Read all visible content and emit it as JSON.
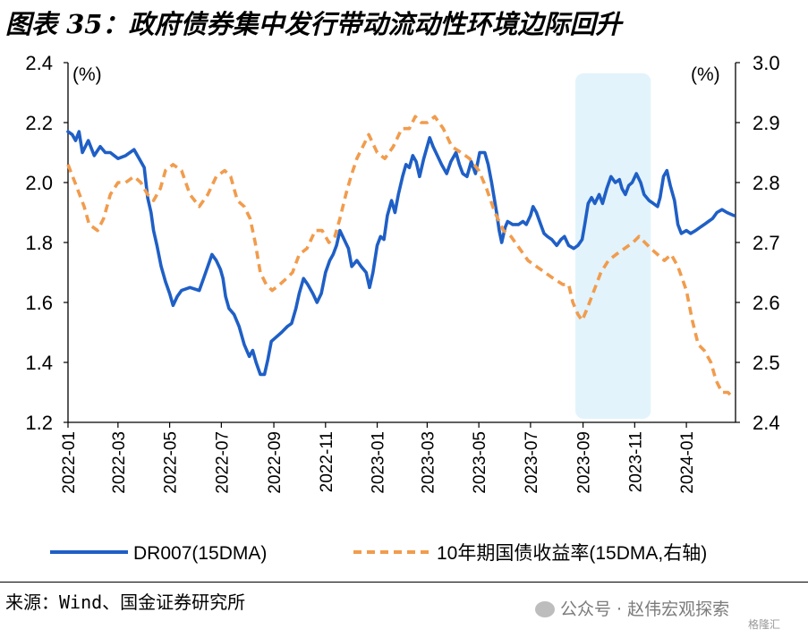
{
  "figure": {
    "title": "图表 35：政府债券集中发行带动流动性环境边际回升",
    "source": "来源：Wind、国金证券研究所",
    "watermark": "公众号 · 赵伟宏观探索",
    "watermark_small": "格隆汇"
  },
  "colors": {
    "series1": "#1f5fc6",
    "series2": "#f19c4d",
    "shade": "#e2f3fb"
  },
  "chart_data": {
    "type": "line",
    "left_unit": "(%)",
    "right_unit": "(%)",
    "y_left": {
      "min": 1.2,
      "max": 2.4,
      "ticks": [
        "1.2",
        "1.4",
        "1.6",
        "1.8",
        "2.0",
        "2.2",
        "2.4"
      ]
    },
    "y_right": {
      "min": 2.4,
      "max": 3.0,
      "ticks": [
        "2.4",
        "2.5",
        "2.6",
        "2.7",
        "2.8",
        "2.9",
        "3.0"
      ]
    },
    "x_ticks": [
      "2022-01",
      "2022-03",
      "2022-05",
      "2022-07",
      "2022-09",
      "2022-11",
      "2023-01",
      "2023-03",
      "2023-05",
      "2023-07",
      "2023-09",
      "2023-11",
      "2024-01"
    ],
    "shaded_period": {
      "start": "2023-08-23",
      "end": "2023-11-20"
    },
    "grid": false,
    "legend_position": "bottom",
    "series": [
      {
        "name": "DR007(15DMA)",
        "axis": "left",
        "style": "solid",
        "points": [
          [
            "2022-01-01",
            2.17
          ],
          [
            "2022-01-06",
            2.16
          ],
          [
            "2022-01-10",
            2.14
          ],
          [
            "2022-01-14",
            2.17
          ],
          [
            "2022-01-18",
            2.1
          ],
          [
            "2022-01-25",
            2.14
          ],
          [
            "2022-02-01",
            2.09
          ],
          [
            "2022-02-08",
            2.12
          ],
          [
            "2022-02-14",
            2.1
          ],
          [
            "2022-02-20",
            2.1
          ],
          [
            "2022-03-01",
            2.08
          ],
          [
            "2022-03-10",
            2.09
          ],
          [
            "2022-03-20",
            2.11
          ],
          [
            "2022-03-26",
            2.08
          ],
          [
            "2022-04-01",
            2.05
          ],
          [
            "2022-04-05",
            1.95
          ],
          [
            "2022-04-09",
            1.9
          ],
          [
            "2022-04-12",
            1.84
          ],
          [
            "2022-04-16",
            1.79
          ],
          [
            "2022-04-21",
            1.72
          ],
          [
            "2022-04-26",
            1.67
          ],
          [
            "2022-05-01",
            1.63
          ],
          [
            "2022-05-05",
            1.59
          ],
          [
            "2022-05-10",
            1.62
          ],
          [
            "2022-05-15",
            1.64
          ],
          [
            "2022-05-25",
            1.65
          ],
          [
            "2022-06-05",
            1.64
          ],
          [
            "2022-06-10",
            1.68
          ],
          [
            "2022-06-15",
            1.72
          ],
          [
            "2022-06-20",
            1.76
          ],
          [
            "2022-06-25",
            1.74
          ],
          [
            "2022-06-30",
            1.71
          ],
          [
            "2022-07-03",
            1.68
          ],
          [
            "2022-07-06",
            1.62
          ],
          [
            "2022-07-10",
            1.58
          ],
          [
            "2022-07-16",
            1.56
          ],
          [
            "2022-07-22",
            1.52
          ],
          [
            "2022-07-28",
            1.46
          ],
          [
            "2022-08-03",
            1.42
          ],
          [
            "2022-08-07",
            1.44
          ],
          [
            "2022-08-11",
            1.4
          ],
          [
            "2022-08-16",
            1.36
          ],
          [
            "2022-08-21",
            1.36
          ],
          [
            "2022-08-25",
            1.41
          ],
          [
            "2022-08-29",
            1.47
          ],
          [
            "2022-09-02",
            1.48
          ],
          [
            "2022-09-10",
            1.5
          ],
          [
            "2022-09-17",
            1.52
          ],
          [
            "2022-09-22",
            1.53
          ],
          [
            "2022-09-27",
            1.58
          ],
          [
            "2022-10-01",
            1.63
          ],
          [
            "2022-10-06",
            1.68
          ],
          [
            "2022-10-11",
            1.66
          ],
          [
            "2022-10-17",
            1.63
          ],
          [
            "2022-10-22",
            1.6
          ],
          [
            "2022-10-27",
            1.63
          ],
          [
            "2022-11-01",
            1.7
          ],
          [
            "2022-11-06",
            1.74
          ],
          [
            "2022-11-10",
            1.76
          ],
          [
            "2022-11-14",
            1.79
          ],
          [
            "2022-11-18",
            1.84
          ],
          [
            "2022-11-23",
            1.81
          ],
          [
            "2022-11-28",
            1.78
          ],
          [
            "2022-12-02",
            1.72
          ],
          [
            "2022-12-08",
            1.74
          ],
          [
            "2022-12-13",
            1.72
          ],
          [
            "2022-12-19",
            1.7
          ],
          [
            "2022-12-23",
            1.65
          ],
          [
            "2022-12-27",
            1.7
          ],
          [
            "2023-01-01",
            1.79
          ],
          [
            "2023-01-05",
            1.82
          ],
          [
            "2023-01-09",
            1.81
          ],
          [
            "2023-01-13",
            1.89
          ],
          [
            "2023-01-18",
            1.94
          ],
          [
            "2023-01-22",
            1.9
          ],
          [
            "2023-01-26",
            1.96
          ],
          [
            "2023-01-31",
            2.02
          ],
          [
            "2023-02-04",
            2.06
          ],
          [
            "2023-02-08",
            2.05
          ],
          [
            "2023-02-12",
            2.09
          ],
          [
            "2023-02-16",
            2.07
          ],
          [
            "2023-02-20",
            2.02
          ],
          [
            "2023-02-25",
            2.08
          ],
          [
            "2023-03-01",
            2.12
          ],
          [
            "2023-03-04",
            2.15
          ],
          [
            "2023-03-08",
            2.12
          ],
          [
            "2023-03-13",
            2.09
          ],
          [
            "2023-03-18",
            2.06
          ],
          [
            "2023-03-24",
            2.03
          ],
          [
            "2023-03-29",
            2.07
          ],
          [
            "2023-04-04",
            2.1
          ],
          [
            "2023-04-08",
            2.06
          ],
          [
            "2023-04-12",
            2.03
          ],
          [
            "2023-04-17",
            2.02
          ],
          [
            "2023-04-22",
            2.07
          ],
          [
            "2023-04-27",
            2.03
          ],
          [
            "2023-05-02",
            2.1
          ],
          [
            "2023-05-08",
            2.1
          ],
          [
            "2023-05-12",
            2.06
          ],
          [
            "2023-05-16",
            2.0
          ],
          [
            "2023-05-19",
            1.95
          ],
          [
            "2023-05-22",
            1.9
          ],
          [
            "2023-05-25",
            1.84
          ],
          [
            "2023-05-28",
            1.8
          ],
          [
            "2023-06-01",
            1.85
          ],
          [
            "2023-06-04",
            1.87
          ],
          [
            "2023-06-10",
            1.86
          ],
          [
            "2023-06-17",
            1.86
          ],
          [
            "2023-06-22",
            1.87
          ],
          [
            "2023-06-26",
            1.86
          ],
          [
            "2023-07-01",
            1.89
          ],
          [
            "2023-07-04",
            1.92
          ],
          [
            "2023-07-08",
            1.9
          ],
          [
            "2023-07-13",
            1.86
          ],
          [
            "2023-07-17",
            1.83
          ],
          [
            "2023-07-21",
            1.82
          ],
          [
            "2023-07-26",
            1.81
          ],
          [
            "2023-08-01",
            1.79
          ],
          [
            "2023-08-06",
            1.81
          ],
          [
            "2023-08-10",
            1.82
          ],
          [
            "2023-08-15",
            1.79
          ],
          [
            "2023-08-21",
            1.78
          ],
          [
            "2023-08-26",
            1.79
          ],
          [
            "2023-08-31",
            1.81
          ],
          [
            "2023-09-03",
            1.86
          ],
          [
            "2023-09-07",
            1.93
          ],
          [
            "2023-09-11",
            1.95
          ],
          [
            "2023-09-15",
            1.93
          ],
          [
            "2023-09-20",
            1.96
          ],
          [
            "2023-09-24",
            1.93
          ],
          [
            "2023-09-29",
            1.98
          ],
          [
            "2023-10-04",
            2.02
          ],
          [
            "2023-10-09",
            2.0
          ],
          [
            "2023-10-14",
            2.01
          ],
          [
            "2023-10-17",
            1.98
          ],
          [
            "2023-10-21",
            1.96
          ],
          [
            "2023-10-25",
            1.99
          ],
          [
            "2023-10-29",
            2.0
          ],
          [
            "2023-11-03",
            2.03
          ],
          [
            "2023-11-08",
            2.0
          ],
          [
            "2023-11-12",
            1.96
          ],
          [
            "2023-11-18",
            1.94
          ],
          [
            "2023-11-23",
            1.93
          ],
          [
            "2023-11-28",
            1.92
          ],
          [
            "2023-12-01",
            1.95
          ],
          [
            "2023-12-05",
            2.02
          ],
          [
            "2023-12-09",
            2.04
          ],
          [
            "2023-12-13",
            1.99
          ],
          [
            "2023-12-18",
            1.94
          ],
          [
            "2023-12-22",
            1.86
          ],
          [
            "2023-12-26",
            1.83
          ],
          [
            "2024-01-01",
            1.84
          ],
          [
            "2024-01-06",
            1.83
          ],
          [
            "2024-01-12",
            1.84
          ],
          [
            "2024-01-17",
            1.85
          ],
          [
            "2024-01-22",
            1.86
          ],
          [
            "2024-01-27",
            1.87
          ],
          [
            "2024-02-01",
            1.88
          ],
          [
            "2024-02-06",
            1.9
          ],
          [
            "2024-02-12",
            1.91
          ],
          [
            "2024-02-18",
            1.9
          ],
          [
            "2024-02-26",
            1.89
          ]
        ]
      },
      {
        "name": "10年期国债收益率(15DMA,右轴)",
        "axis": "right",
        "style": "dashed",
        "points": [
          [
            "2022-01-01",
            2.83
          ],
          [
            "2022-01-12",
            2.79
          ],
          [
            "2022-01-20",
            2.76
          ],
          [
            "2022-01-26",
            2.73
          ],
          [
            "2022-02-05",
            2.72
          ],
          [
            "2022-02-12",
            2.74
          ],
          [
            "2022-02-20",
            2.78
          ],
          [
            "2022-03-01",
            2.8
          ],
          [
            "2022-03-10",
            2.8
          ],
          [
            "2022-03-20",
            2.81
          ],
          [
            "2022-03-28",
            2.8
          ],
          [
            "2022-04-05",
            2.78
          ],
          [
            "2022-04-12",
            2.77
          ],
          [
            "2022-04-20",
            2.79
          ],
          [
            "2022-04-26",
            2.82
          ],
          [
            "2022-05-05",
            2.83
          ],
          [
            "2022-05-15",
            2.82
          ],
          [
            "2022-05-25",
            2.78
          ],
          [
            "2022-06-05",
            2.76
          ],
          [
            "2022-06-15",
            2.78
          ],
          [
            "2022-06-25",
            2.81
          ],
          [
            "2022-07-05",
            2.82
          ],
          [
            "2022-07-12",
            2.81
          ],
          [
            "2022-07-20",
            2.77
          ],
          [
            "2022-07-28",
            2.76
          ],
          [
            "2022-08-04",
            2.74
          ],
          [
            "2022-08-10",
            2.7
          ],
          [
            "2022-08-16",
            2.65
          ],
          [
            "2022-08-23",
            2.63
          ],
          [
            "2022-08-30",
            2.62
          ],
          [
            "2022-09-08",
            2.63
          ],
          [
            "2022-09-16",
            2.64
          ],
          [
            "2022-09-23",
            2.65
          ],
          [
            "2022-10-01",
            2.68
          ],
          [
            "2022-10-10",
            2.69
          ],
          [
            "2022-10-20",
            2.72
          ],
          [
            "2022-10-28",
            2.72
          ],
          [
            "2022-11-05",
            2.7
          ],
          [
            "2022-11-12",
            2.71
          ],
          [
            "2022-11-18",
            2.74
          ],
          [
            "2022-11-25",
            2.78
          ],
          [
            "2022-12-01",
            2.81
          ],
          [
            "2022-12-08",
            2.84
          ],
          [
            "2022-12-15",
            2.86
          ],
          [
            "2022-12-22",
            2.88
          ],
          [
            "2023-01-01",
            2.85
          ],
          [
            "2023-01-10",
            2.84
          ],
          [
            "2023-01-20",
            2.86
          ],
          [
            "2023-01-30",
            2.89
          ],
          [
            "2023-02-08",
            2.89
          ],
          [
            "2023-02-15",
            2.91
          ],
          [
            "2023-02-22",
            2.9
          ],
          [
            "2023-03-01",
            2.9
          ],
          [
            "2023-03-10",
            2.91
          ],
          [
            "2023-03-20",
            2.89
          ],
          [
            "2023-03-30",
            2.86
          ],
          [
            "2023-04-10",
            2.85
          ],
          [
            "2023-04-20",
            2.84
          ],
          [
            "2023-05-01",
            2.82
          ],
          [
            "2023-05-10",
            2.79
          ],
          [
            "2023-05-20",
            2.75
          ],
          [
            "2023-05-30",
            2.72
          ],
          [
            "2023-06-08",
            2.71
          ],
          [
            "2023-06-18",
            2.69
          ],
          [
            "2023-06-28",
            2.67
          ],
          [
            "2023-07-08",
            2.66
          ],
          [
            "2023-07-18",
            2.65
          ],
          [
            "2023-07-28",
            2.64
          ],
          [
            "2023-08-08",
            2.63
          ],
          [
            "2023-08-15",
            2.63
          ],
          [
            "2023-08-20",
            2.6
          ],
          [
            "2023-08-26",
            2.58
          ],
          [
            "2023-08-31",
            2.57
          ],
          [
            "2023-09-06",
            2.59
          ],
          [
            "2023-09-14",
            2.62
          ],
          [
            "2023-09-22",
            2.65
          ],
          [
            "2023-10-01",
            2.67
          ],
          [
            "2023-10-10",
            2.68
          ],
          [
            "2023-10-20",
            2.69
          ],
          [
            "2023-10-30",
            2.7
          ],
          [
            "2023-11-06",
            2.71
          ],
          [
            "2023-11-13",
            2.7
          ],
          [
            "2023-11-20",
            2.69
          ],
          [
            "2023-11-28",
            2.68
          ],
          [
            "2023-12-06",
            2.67
          ],
          [
            "2023-12-14",
            2.68
          ],
          [
            "2023-12-22",
            2.66
          ],
          [
            "2024-01-01",
            2.62
          ],
          [
            "2024-01-08",
            2.57
          ],
          [
            "2024-01-15",
            2.53
          ],
          [
            "2024-01-22",
            2.52
          ],
          [
            "2024-01-30",
            2.5
          ],
          [
            "2024-02-05",
            2.47
          ],
          [
            "2024-02-12",
            2.45
          ],
          [
            "2024-02-19",
            2.45
          ],
          [
            "2024-02-26",
            2.44
          ]
        ]
      }
    ]
  }
}
